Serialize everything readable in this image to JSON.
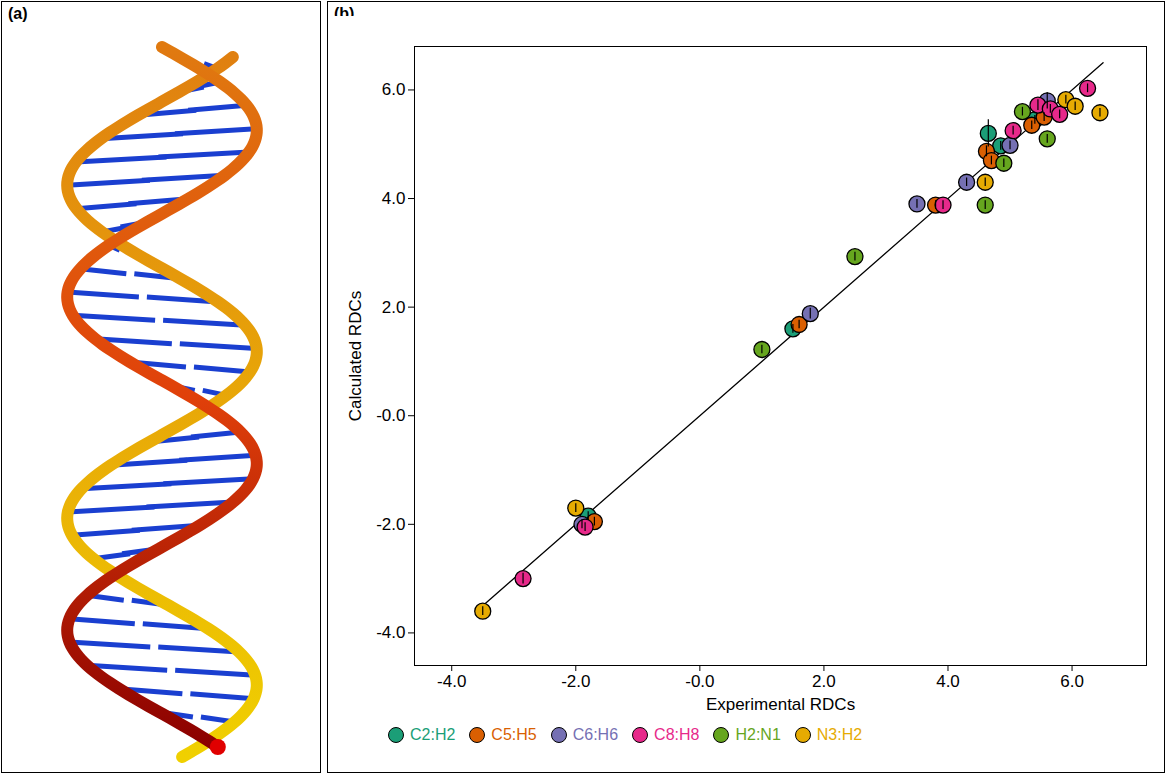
{
  "panel_labels": [
    "(a)",
    "(b)"
  ],
  "chart_data": {
    "type": "scatter",
    "x_label": "Experimental RDCs",
    "y_label": "Calculated RDCs",
    "xlim": [
      -4.6,
      7.2
    ],
    "ylim": [
      -4.6,
      6.8
    ],
    "xticks": [
      {
        "value": -4,
        "label": "-4.0"
      },
      {
        "value": -2,
        "label": "-2.0"
      },
      {
        "value": 0,
        "label": "-0.0"
      },
      {
        "value": 2,
        "label": "2.0"
      },
      {
        "value": 4,
        "label": "4.0"
      },
      {
        "value": 6,
        "label": "6.0"
      }
    ],
    "yticks": [
      {
        "value": -4,
        "label": "-4.0"
      },
      {
        "value": -2,
        "label": "-2.0"
      },
      {
        "value": 0,
        "label": "-0.0"
      },
      {
        "value": 2,
        "label": "2.0"
      },
      {
        "value": 4,
        "label": "4.0"
      },
      {
        "value": 6,
        "label": "6.0"
      }
    ],
    "grid": false,
    "legend": "bottom",
    "fit_line": {
      "x": [
        -3.5,
        6.5
      ],
      "y": [
        -3.5,
        6.5
      ]
    },
    "series": [
      {
        "name": "C2:H2",
        "color": "#1b9e77",
        "x": [
          -1.8,
          1.5,
          4.65,
          4.85,
          5.4
        ],
        "y": [
          -1.85,
          1.6,
          5.2,
          4.97,
          5.45
        ],
        "errors": [
          0.08,
          0.08,
          0.25,
          0.08,
          0.08
        ]
      },
      {
        "name": "C5:H5",
        "color": "#d95f02",
        "x": [
          -1.7,
          1.6,
          3.8,
          4.62,
          4.7,
          5.35,
          5.55
        ],
        "y": [
          -1.95,
          1.68,
          3.88,
          4.87,
          4.7,
          5.35,
          5.5
        ],
        "errors": [
          0.08,
          0.08,
          0.08,
          0.1,
          0.08,
          0.08,
          0.08
        ]
      },
      {
        "name": "C6:H6",
        "color": "#7570b3",
        "x": [
          -1.9,
          1.78,
          3.5,
          4.3,
          5.0,
          5.6
        ],
        "y": [
          -2.0,
          1.88,
          3.9,
          4.3,
          4.98,
          5.8
        ],
        "errors": [
          0.08,
          0.1,
          0.08,
          0.08,
          0.08,
          0.15
        ]
      },
      {
        "name": "C8:H8",
        "color": "#e7298a",
        "x": [
          -2.85,
          -1.85,
          3.92,
          5.05,
          5.45,
          5.65,
          5.8,
          6.25
        ],
        "y": [
          -3.0,
          -2.05,
          3.88,
          5.25,
          5.72,
          5.65,
          5.55,
          6.03
        ],
        "errors": [
          0.1,
          0.08,
          0.08,
          0.08,
          0.1,
          0.08,
          0.08,
          0.08
        ]
      },
      {
        "name": "H2:N1",
        "color": "#66a61e",
        "x": [
          1.0,
          2.5,
          4.6,
          4.9,
          5.2,
          5.6
        ],
        "y": [
          1.22,
          2.93,
          3.88,
          4.65,
          5.6,
          5.1
        ],
        "errors": [
          0.08,
          0.08,
          0.08,
          0.08,
          0.08,
          0.08
        ]
      },
      {
        "name": "N3:H2",
        "color": "#e6ab02",
        "x": [
          -3.5,
          -2.0,
          4.6,
          5.9,
          6.05,
          6.45
        ],
        "y": [
          -3.6,
          -1.7,
          4.3,
          5.82,
          5.7,
          5.58
        ],
        "errors": [
          0.08,
          0.08,
          0.08,
          0.08,
          0.08,
          0.08
        ]
      }
    ]
  }
}
